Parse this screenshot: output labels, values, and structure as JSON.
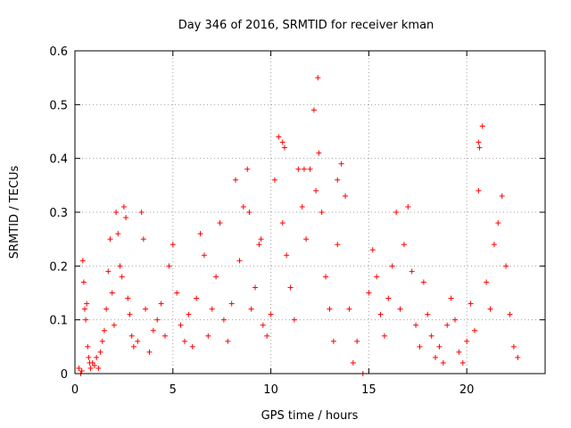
{
  "chart_data": {
    "type": "scatter",
    "title": "Day 346 of 2016, SRMTID for receiver kman",
    "xlabel": "GPS time / hours",
    "ylabel": "SRMTID / TECUs",
    "xlim": [
      0,
      24
    ],
    "ylim": [
      0,
      0.6
    ],
    "x_ticks": [
      0,
      5,
      10,
      15,
      20
    ],
    "x_tick_labels": [
      "0",
      "5",
      "10",
      "15",
      "20"
    ],
    "y_ticks": [
      0,
      0.1,
      0.2,
      0.3,
      0.4,
      0.5,
      0.6
    ],
    "y_tick_labels": [
      "0",
      "0.1",
      "0.2",
      "0.3",
      "0.4",
      "0.5",
      "0.6"
    ],
    "grid": true,
    "marker": "+",
    "color": "#ff0000",
    "series": [
      {
        "name": "SRMTID",
        "x": [
          0.2,
          0.3,
          0.35,
          0.4,
          0.45,
          0.5,
          0.55,
          0.6,
          0.65,
          0.7,
          0.75,
          0.8,
          0.9,
          1.0,
          1.1,
          1.2,
          1.3,
          1.4,
          1.5,
          1.6,
          1.7,
          1.8,
          1.9,
          2.0,
          2.1,
          2.2,
          2.3,
          2.4,
          2.5,
          2.6,
          2.7,
          2.8,
          2.9,
          3.0,
          3.2,
          3.4,
          3.5,
          3.6,
          3.8,
          4.0,
          4.2,
          4.4,
          4.6,
          4.8,
          5.0,
          5.2,
          5.4,
          5.6,
          5.8,
          6.0,
          6.2,
          6.4,
          6.6,
          6.8,
          7.0,
          7.2,
          7.4,
          7.6,
          7.8,
          8.0,
          8.2,
          8.4,
          8.6,
          8.8,
          9.0,
          9.2,
          9.4,
          9.6,
          9.8,
          10.0,
          10.2,
          10.4,
          10.6,
          10.8,
          11.0,
          11.2,
          11.4,
          11.6,
          11.8,
          12.0,
          12.2,
          12.4,
          12.6,
          12.8,
          13.0,
          13.2,
          13.4,
          13.6,
          13.8,
          14.0,
          14.2,
          14.4,
          14.7,
          15.0,
          15.2,
          15.4,
          15.6,
          15.8,
          16.0,
          16.2,
          16.4,
          16.6,
          16.8,
          17.0,
          17.2,
          17.4,
          17.6,
          17.8,
          18.0,
          18.2,
          18.4,
          18.6,
          18.8,
          19.0,
          19.2,
          19.4,
          19.6,
          19.8,
          20.0,
          20.2,
          20.4,
          20.6,
          20.8,
          21.0,
          21.2,
          21.4,
          21.6,
          21.8,
          22.0,
          22.2,
          22.4,
          22.6,
          10.6,
          10.7,
          12.3,
          12.45,
          20.6,
          20.65,
          8.9,
          9.5,
          13.4,
          11.7
        ],
        "y": [
          0.01,
          0.0,
          0.005,
          0.21,
          0.17,
          0.12,
          0.1,
          0.13,
          0.05,
          0.03,
          0.02,
          0.01,
          0.02,
          0.015,
          0.03,
          0.01,
          0.04,
          0.06,
          0.08,
          0.12,
          0.19,
          0.25,
          0.15,
          0.09,
          0.3,
          0.26,
          0.2,
          0.18,
          0.31,
          0.29,
          0.14,
          0.11,
          0.07,
          0.05,
          0.06,
          0.3,
          0.25,
          0.12,
          0.04,
          0.08,
          0.1,
          0.13,
          0.07,
          0.2,
          0.24,
          0.15,
          0.09,
          0.06,
          0.11,
          0.05,
          0.14,
          0.26,
          0.22,
          0.07,
          0.12,
          0.18,
          0.28,
          0.1,
          0.06,
          0.13,
          0.36,
          0.21,
          0.31,
          0.38,
          0.12,
          0.16,
          0.24,
          0.09,
          0.07,
          0.11,
          0.36,
          0.44,
          0.28,
          0.22,
          0.16,
          0.1,
          0.38,
          0.31,
          0.25,
          0.38,
          0.49,
          0.55,
          0.3,
          0.18,
          0.12,
          0.06,
          0.24,
          0.39,
          0.33,
          0.12,
          0.02,
          0.06,
          0.0,
          0.15,
          0.23,
          0.18,
          0.11,
          0.07,
          0.14,
          0.2,
          0.3,
          0.12,
          0.24,
          0.31,
          0.19,
          0.09,
          0.05,
          0.17,
          0.11,
          0.07,
          0.03,
          0.05,
          0.02,
          0.09,
          0.14,
          0.1,
          0.04,
          0.02,
          0.06,
          0.13,
          0.08,
          0.34,
          0.46,
          0.17,
          0.12,
          0.24,
          0.28,
          0.33,
          0.2,
          0.11,
          0.05,
          0.03,
          0.43,
          0.42,
          0.34,
          0.41,
          0.43,
          0.42,
          0.3,
          0.25,
          0.36,
          0.38
        ]
      }
    ]
  }
}
